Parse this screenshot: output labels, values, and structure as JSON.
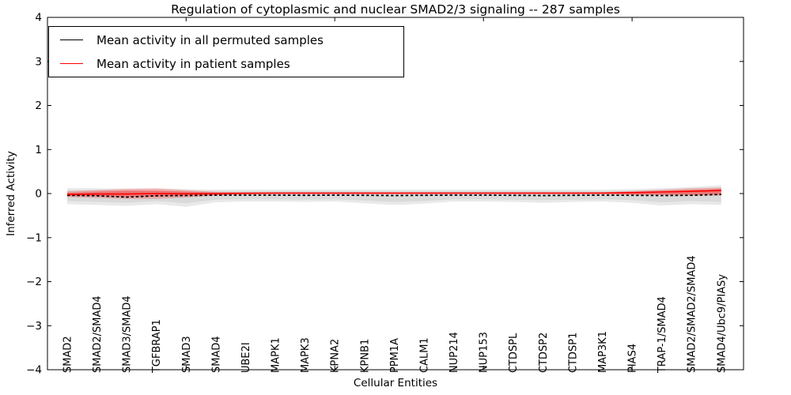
{
  "figure": {
    "title": "Regulation of cytoplasmic and nuclear SMAD2/3 signaling -- 287 samples"
  },
  "legend": {
    "items": [
      {
        "label": "Mean activity in all permuted samples",
        "color": "#000000"
      },
      {
        "label": "Mean activity in patient samples",
        "color": "#ff0000"
      }
    ],
    "position": "upper left"
  },
  "chart_data": {
    "type": "line",
    "title": "Regulation of cytoplasmic and nuclear SMAD2/3 signaling -- 287 samples",
    "xlabel": "Cellular Entities",
    "ylabel": "Inferred Activity",
    "ylim": [
      -4,
      4
    ],
    "yticks": [
      -4,
      -3,
      -2,
      -1,
      0,
      1,
      2,
      3,
      4
    ],
    "xticks_major": [
      5,
      10,
      15,
      20
    ],
    "grid": false,
    "legend_position": "upper left",
    "categories": [
      "SMAD2",
      "SMAD2/SMAD4",
      "SMAD3/SMAD4",
      "TGFBRAP1",
      "SMAD3",
      "SMAD4",
      "UBE2I",
      "MAPK1",
      "MAPK3",
      "KPNA2",
      "KPNB1",
      "PPM1A",
      "CALM1",
      "NUP214",
      "NUP153",
      "CTDSPL",
      "CTDSP2",
      "CTDSP1",
      "MAP3K1",
      "PIAS4",
      "TRAP-1/SMAD4",
      "SMAD2/SMAD2/SMAD4",
      "SMAD4/Ubc9/PIASy"
    ],
    "series": [
      {
        "name": "Mean activity in all permuted samples",
        "color": "#000000",
        "style": "dashed",
        "values": [
          -0.04,
          -0.05,
          -0.08,
          -0.05,
          -0.045,
          -0.035,
          -0.035,
          -0.035,
          -0.04,
          -0.035,
          -0.04,
          -0.045,
          -0.04,
          -0.035,
          -0.035,
          -0.04,
          -0.045,
          -0.04,
          -0.035,
          -0.04,
          -0.045,
          -0.04,
          -0.02
        ]
      },
      {
        "name": "Mean activity in patient samples",
        "color": "#ff0000",
        "style": "solid",
        "values": [
          -0.02,
          -0.01,
          -0.01,
          0.0,
          -0.005,
          0.0,
          0.005,
          0.01,
          0.01,
          0.01,
          0.01,
          0.01,
          0.01,
          0.01,
          0.01,
          0.01,
          0.01,
          0.01,
          0.01,
          0.02,
          0.035,
          0.05,
          0.07
        ]
      }
    ],
    "bands": [
      {
        "name": "permuted-range-outer",
        "color": "#e9e9e9",
        "opacity": 1,
        "upper": [
          0.12,
          0.12,
          0.11,
          0.11,
          0.1,
          0.09,
          0.09,
          0.09,
          0.09,
          0.09,
          0.09,
          0.09,
          0.09,
          0.09,
          0.09,
          0.09,
          0.09,
          0.09,
          0.09,
          0.1,
          0.12,
          0.15,
          0.19
        ],
        "lower": [
          -0.24,
          -0.26,
          -0.28,
          -0.24,
          -0.3,
          -0.2,
          -0.18,
          -0.18,
          -0.19,
          -0.18,
          -0.22,
          -0.26,
          -0.23,
          -0.18,
          -0.18,
          -0.19,
          -0.21,
          -0.19,
          -0.18,
          -0.21,
          -0.27,
          -0.24,
          -0.26
        ]
      },
      {
        "name": "permuted-range-inner",
        "color": "#dadada",
        "opacity": 1,
        "upper": [
          0.08,
          0.08,
          0.07,
          0.07,
          0.06,
          0.06,
          0.06,
          0.06,
          0.06,
          0.06,
          0.06,
          0.06,
          0.06,
          0.06,
          0.06,
          0.06,
          0.06,
          0.06,
          0.06,
          0.07,
          0.08,
          0.1,
          0.13
        ],
        "lower": [
          -0.17,
          -0.19,
          -0.21,
          -0.17,
          -0.22,
          -0.14,
          -0.13,
          -0.13,
          -0.14,
          -0.13,
          -0.16,
          -0.19,
          -0.17,
          -0.13,
          -0.13,
          -0.14,
          -0.15,
          -0.14,
          -0.13,
          -0.15,
          -0.2,
          -0.17,
          -0.19
        ]
      },
      {
        "name": "patient-range-outer",
        "color": "#ff0000",
        "opacity": 0.22,
        "upper": [
          0.05,
          0.08,
          0.11,
          0.12,
          0.08,
          0.04,
          0.03,
          0.025,
          0.025,
          0.025,
          0.025,
          0.025,
          0.025,
          0.025,
          0.025,
          0.025,
          0.025,
          0.025,
          0.03,
          0.06,
          0.09,
          0.12,
          0.14
        ],
        "lower": [
          -0.08,
          -0.1,
          -0.12,
          -0.12,
          -0.09,
          -0.05,
          -0.02,
          -0.01,
          -0.01,
          -0.01,
          -0.01,
          -0.01,
          -0.01,
          -0.01,
          -0.01,
          -0.01,
          -0.01,
          -0.01,
          -0.01,
          -0.03,
          -0.04,
          -0.05,
          -0.05
        ]
      },
      {
        "name": "patient-range-inner",
        "color": "#ff0000",
        "opacity": 0.3,
        "upper": [
          0.02,
          0.045,
          0.065,
          0.065,
          0.045,
          0.02,
          0.02,
          0.02,
          0.02,
          0.02,
          0.02,
          0.02,
          0.02,
          0.02,
          0.02,
          0.02,
          0.02,
          0.02,
          0.02,
          0.04,
          0.06,
          0.08,
          0.1
        ],
        "lower": [
          -0.05,
          -0.06,
          -0.075,
          -0.07,
          -0.05,
          -0.03,
          -0.005,
          0.0,
          0.0,
          0.0,
          0.0,
          0.0,
          0.0,
          0.0,
          0.0,
          0.0,
          0.0,
          0.0,
          0.0,
          -0.015,
          -0.02,
          -0.02,
          -0.02
        ]
      }
    ]
  }
}
